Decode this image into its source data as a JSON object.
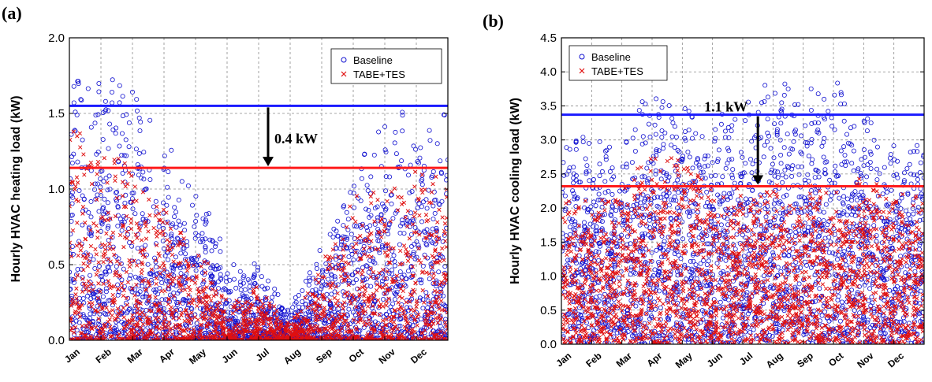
{
  "chart_data": [
    {
      "panel_label": "(a)",
      "type": "scatter",
      "ylabel": "Hourly HVAC heating load (kW)",
      "ylim": [
        0,
        2.0
      ],
      "yticks": [
        "0.0",
        "0.5",
        "1.0",
        "1.5",
        "2.0"
      ],
      "x_tick_labels": [
        "Jan",
        "Feb",
        "Mar",
        "Apr",
        "May",
        "Jun",
        "Jul",
        "Aug",
        "Sep",
        "Oct",
        "Nov",
        "Dec"
      ],
      "grid": true,
      "legend": {
        "position": "top-right",
        "entries": [
          "Baseline",
          "TABE+TES"
        ]
      },
      "series": [
        {
          "name": "Baseline",
          "marker": "open-circle",
          "color": "#1010d0",
          "monthly_peak_kw": [
            1.88,
            1.75,
            1.85,
            1.3,
            1.15,
            0.55,
            0.52,
            0.22,
            0.62,
            1.12,
            1.5,
            1.62
          ]
        },
        {
          "name": "TABE+TES",
          "marker": "x",
          "color": "#e01010",
          "monthly_peak_kw": [
            1.5,
            1.35,
            1.3,
            0.9,
            0.65,
            0.3,
            0.36,
            0.1,
            0.5,
            0.95,
            1.1,
            1.15
          ]
        }
      ],
      "reference_lines": [
        {
          "value": 1.55,
          "color": "#1a1aff"
        },
        {
          "value": 1.14,
          "color": "#ff1a1a"
        }
      ],
      "annotation": {
        "text": "0.4 kW",
        "from": 1.55,
        "to": 1.14,
        "month_index": 6.3
      }
    },
    {
      "panel_label": "(b)",
      "type": "scatter",
      "ylabel": "Hourly HVAC cooling load (kW)",
      "ylim": [
        0,
        4.5
      ],
      "yticks": [
        "0.0",
        "0.5",
        "1.0",
        "1.5",
        "2.0",
        "2.5",
        "3.0",
        "3.5",
        "4.0",
        "4.5"
      ],
      "x_tick_labels": [
        "Jan",
        "Feb",
        "Mar",
        "Apr",
        "May",
        "Jun",
        "Jul",
        "Aug",
        "Sep",
        "Oct",
        "Nov",
        "Dec"
      ],
      "grid": true,
      "legend": {
        "position": "top-left",
        "entries": [
          "Baseline",
          "TABE+TES"
        ]
      },
      "series": [
        {
          "name": "Baseline",
          "marker": "open-circle",
          "color": "#1010d0",
          "monthly_peak_kw": [
            3.1,
            3.15,
            3.0,
            3.9,
            3.75,
            3.3,
            3.7,
            3.85,
            3.9,
            3.95,
            3.5,
            3.0
          ]
        },
        {
          "name": "TABE+TES",
          "marker": "x",
          "color": "#e01010",
          "monthly_peak_kw": [
            2.3,
            2.2,
            2.3,
            3.1,
            2.8,
            2.3,
            2.35,
            2.4,
            2.35,
            2.4,
            2.65,
            2.3
          ]
        }
      ],
      "reference_lines": [
        {
          "value": 3.37,
          "color": "#1a1aff"
        },
        {
          "value": 2.32,
          "color": "#ff1a1a"
        }
      ],
      "annotation": {
        "text": "1.1 kW",
        "from": 3.37,
        "to": 2.32,
        "month_index": 6.5
      }
    }
  ]
}
